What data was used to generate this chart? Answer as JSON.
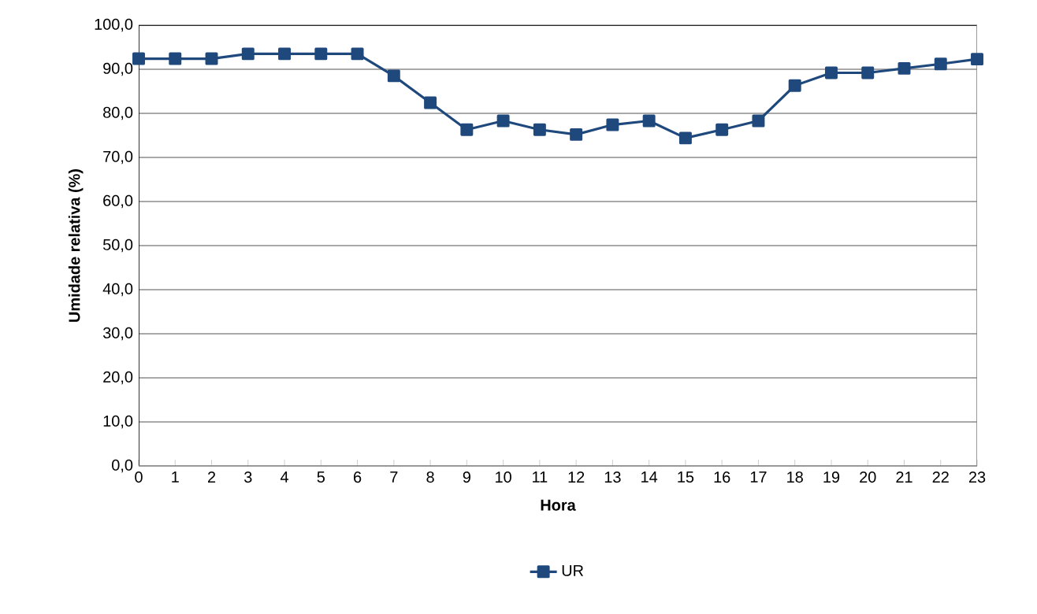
{
  "chart_data": {
    "type": "line",
    "xlabel": "Hora",
    "ylabel": "Umidade relativa (%)",
    "x": [
      0,
      1,
      2,
      3,
      4,
      5,
      6,
      7,
      8,
      9,
      10,
      11,
      12,
      13,
      14,
      15,
      16,
      17,
      18,
      19,
      20,
      21,
      22,
      23
    ],
    "series": [
      {
        "name": "UR",
        "color": "#1f497d",
        "values": [
          92.4,
          92.4,
          92.4,
          93.5,
          93.5,
          93.5,
          93.5,
          88.5,
          82.4,
          76.3,
          78.3,
          76.3,
          75.2,
          77.4,
          78.3,
          74.4,
          76.3,
          78.3,
          86.3,
          89.2,
          89.2,
          90.2,
          91.2,
          92.3
        ]
      }
    ],
    "xlim": [
      0,
      23
    ],
    "xticks": [
      0,
      1,
      2,
      3,
      4,
      5,
      6,
      7,
      8,
      9,
      10,
      11,
      12,
      13,
      14,
      15,
      16,
      17,
      18,
      19,
      20,
      21,
      22,
      23
    ],
    "ylim": [
      0,
      100
    ],
    "yticks": [
      {
        "value": 0,
        "label": "0,0"
      },
      {
        "value": 10,
        "label": "10,0"
      },
      {
        "value": 20,
        "label": "20,0"
      },
      {
        "value": 30,
        "label": "30,0"
      },
      {
        "value": 40,
        "label": "40,0"
      },
      {
        "value": 50,
        "label": "50,0"
      },
      {
        "value": 60,
        "label": "60,0"
      },
      {
        "value": 70,
        "label": "70,0"
      },
      {
        "value": 80,
        "label": "80,0"
      },
      {
        "value": 90,
        "label": "90,0"
      },
      {
        "value": 100,
        "label": "100,0"
      }
    ],
    "grid": "y",
    "legend": "bottom",
    "marker": "square",
    "line_style": "solid"
  }
}
